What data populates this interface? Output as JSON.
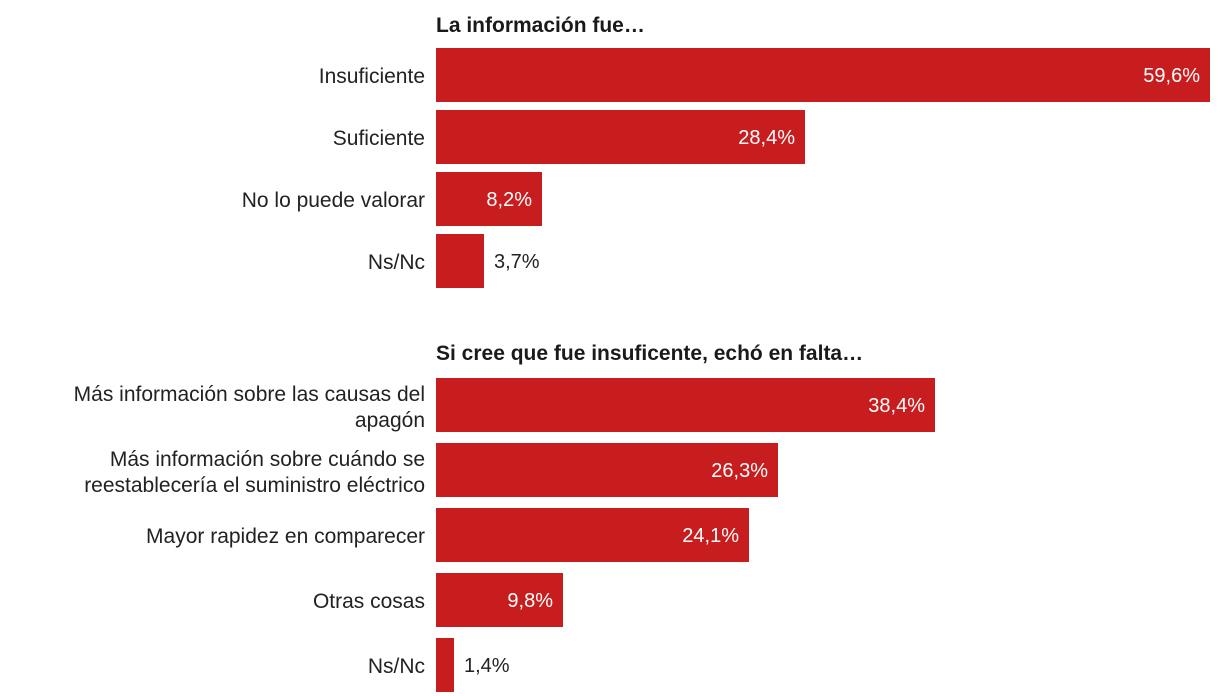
{
  "colors": {
    "bar": "#c81d1e",
    "label_inside": "#ffffff",
    "label_outside": "#222222"
  },
  "chart_data": [
    {
      "type": "bar",
      "orientation": "horizontal",
      "title": "La información fue…",
      "categories": [
        "Insuficiente",
        "Suficiente",
        "No lo puede valorar",
        "Ns/Nc"
      ],
      "values": [
        59.6,
        28.4,
        8.2,
        3.7
      ],
      "value_labels": [
        "59,6%",
        "28,4%",
        "8,2%",
        "3,7%"
      ],
      "unit": "%",
      "xlim": [
        0,
        59.6
      ]
    },
    {
      "type": "bar",
      "orientation": "horizontal",
      "title": "Si cree que fue insuficente, echó en falta…",
      "categories": [
        [
          "Más información sobre las causas del",
          "apagón"
        ],
        [
          "Más información sobre cuándo se",
          "reestablecería el suministro eléctrico"
        ],
        [
          "Mayor rapidez en comparecer"
        ],
        [
          "Otras cosas"
        ],
        [
          "Ns/Nc"
        ]
      ],
      "values": [
        38.4,
        26.3,
        24.1,
        9.8,
        1.4
      ],
      "value_labels": [
        "38,4%",
        "26,3%",
        "24,1%",
        "9,8%",
        "1,4%"
      ],
      "unit": "%",
      "xlim": [
        0,
        59.6
      ]
    }
  ]
}
